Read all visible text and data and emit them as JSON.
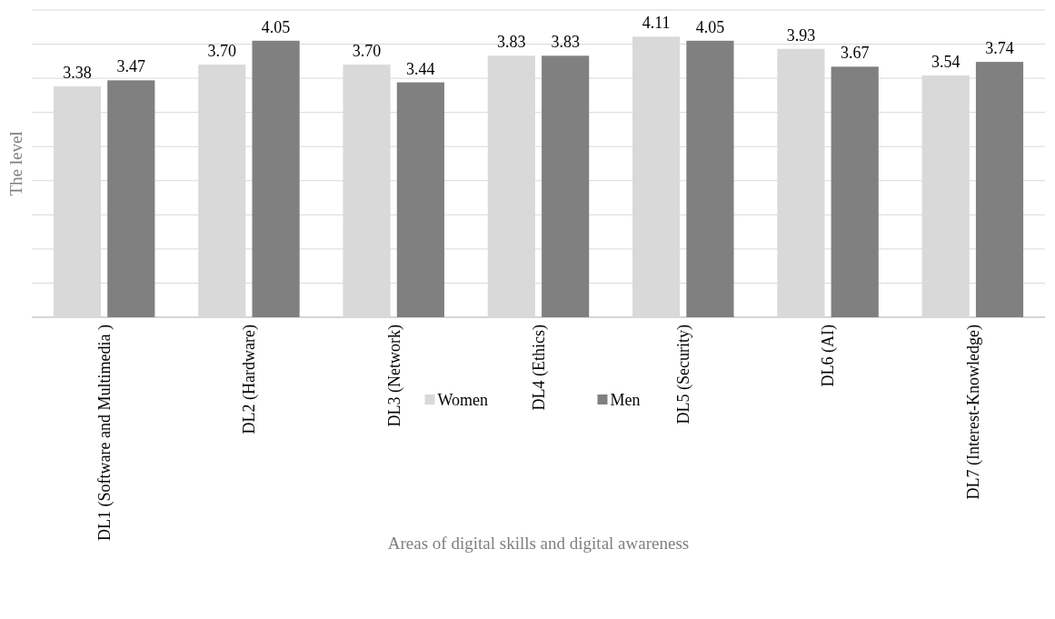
{
  "chart_data": {
    "type": "bar",
    "xlabel": "Areas of digital skills and digital awareness",
    "ylabel": "The level",
    "categories": [
      "DL1 (Software and Multimedia )",
      "DL2 (Hardware)",
      "DL3 (Network)",
      "DL4 (Ethics)",
      "DL5 (Security)",
      "DL6 (AI)",
      "DL7 (Interest-Knowledge)"
    ],
    "series": [
      {
        "name": "Women",
        "color": "#d9d9d9",
        "values": [
          3.38,
          3.7,
          3.7,
          3.83,
          4.11,
          3.93,
          3.54
        ],
        "value_labels": [
          "3.38",
          "3.70",
          "3.70",
          "3.83",
          "4.11",
          "3.93",
          "3.54"
        ]
      },
      {
        "name": "Men",
        "color": "#808080",
        "values": [
          3.47,
          4.05,
          3.44,
          3.83,
          4.05,
          3.67,
          3.74
        ],
        "value_labels": [
          "3.47",
          "4.05",
          "3.44",
          "3.83",
          "4.05",
          "3.67",
          "3.74"
        ]
      }
    ],
    "ylim": [
      0,
      4.5
    ],
    "yticks": [
      {
        "value": 0,
        "label": null
      },
      {
        "value": 0.5,
        "label": null
      },
      {
        "value": 1,
        "label": null
      },
      {
        "value": 1.5,
        "label": null
      },
      {
        "value": 2,
        "label": null
      },
      {
        "value": 2.5,
        "label": null
      },
      {
        "value": 3,
        "label": null
      },
      {
        "value": 3.5,
        "label": null
      },
      {
        "value": 4,
        "label": null
      },
      {
        "value": 4.5,
        "label": null
      }
    ],
    "tick_labels": "x",
    "grid": "y",
    "legend": "bottom"
  }
}
